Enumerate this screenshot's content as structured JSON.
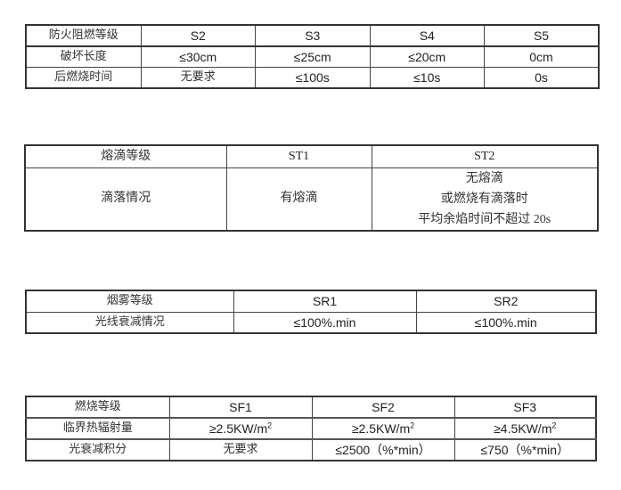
{
  "flame_table": {
    "header": [
      "防火阻燃等级",
      "S2",
      "S3",
      "S4",
      "S5"
    ],
    "rows": [
      [
        "破坏长度",
        "≤30cm",
        "≤25cm",
        "≤20cm",
        "0cm"
      ],
      [
        "后燃烧时间",
        "无要求",
        "≤100s",
        "≤10s",
        "0s"
      ]
    ]
  },
  "drip_table": {
    "header": [
      "熔滴等级",
      "ST1",
      "ST2"
    ],
    "row_label": "滴落情况",
    "st1": "有熔滴",
    "st2_lines": [
      "无熔滴",
      "或燃烧有滴落时",
      "平均余焰时间不超过 20s"
    ]
  },
  "smoke_table": {
    "header": [
      "烟雾等级",
      "SR1",
      "SR2"
    ],
    "row": [
      "光线衰减情况",
      "≤100%.min",
      "≤100%.min"
    ]
  },
  "burn_table": {
    "header": [
      "燃烧等级",
      "SF1",
      "SF2",
      "SF3"
    ],
    "radiation_label": "临界热辐射量",
    "radiation": [
      "≥2.5KW/m",
      "≥2.5KW/m",
      "≥4.5KW/m"
    ],
    "radiation_exp": "2",
    "attenuation": [
      "光衰减积分",
      "无要求",
      "≤2500（%*min）",
      "≤750（%*min）"
    ]
  }
}
